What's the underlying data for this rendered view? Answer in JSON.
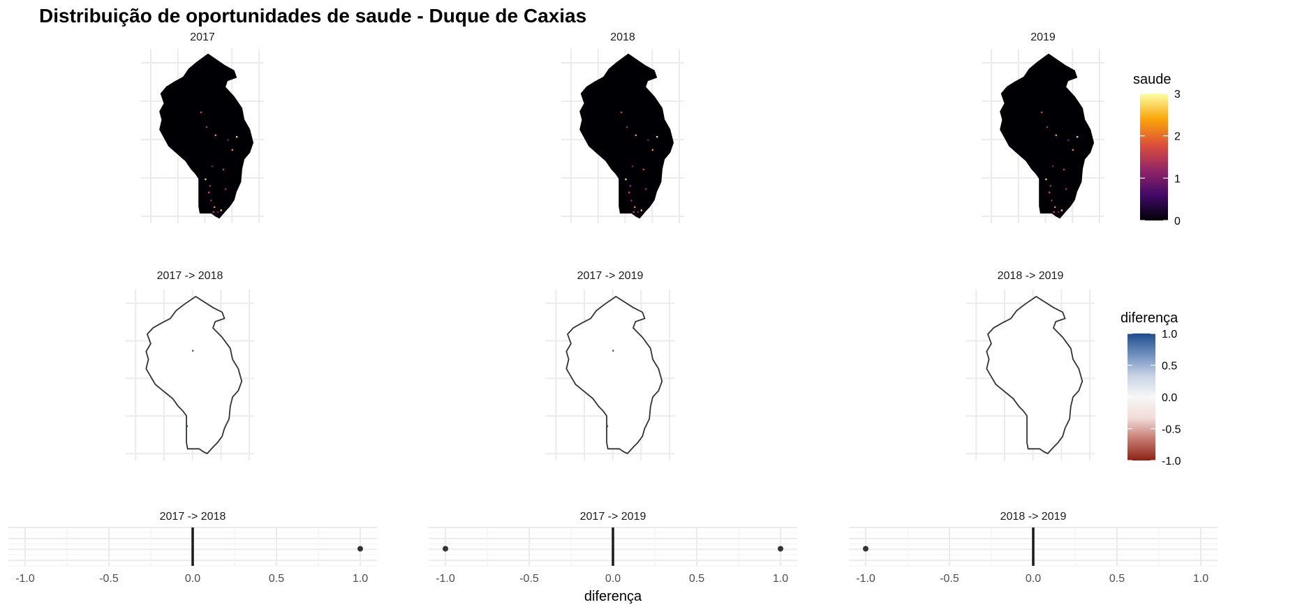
{
  "chart_data": {
    "type": "faceted-map-and-strip",
    "title": "Distribuição de oportunidades de saude - Duque de Caxias",
    "map_facets": [
      {
        "label": "2017",
        "hotspots": [
          [
            0.48,
            0.35
          ],
          [
            0.53,
            0.44
          ],
          [
            0.61,
            0.49
          ],
          [
            0.58,
            0.68
          ],
          [
            0.52,
            0.76
          ],
          [
            0.55,
            0.84
          ],
          [
            0.57,
            0.89
          ],
          [
            0.6,
            0.93
          ],
          [
            0.63,
            0.96
          ],
          [
            0.66,
            0.95
          ],
          [
            0.59,
            0.96
          ],
          [
            0.7,
            0.82
          ],
          [
            0.76,
            0.58
          ],
          [
            0.72,
            0.52
          ],
          [
            0.8,
            0.5
          ],
          [
            0.68,
            0.7
          ],
          [
            0.56,
            0.8
          ]
        ]
      },
      {
        "label": "2018",
        "hotspots": [
          [
            0.48,
            0.35
          ],
          [
            0.53,
            0.44
          ],
          [
            0.61,
            0.49
          ],
          [
            0.58,
            0.68
          ],
          [
            0.52,
            0.76
          ],
          [
            0.55,
            0.84
          ],
          [
            0.57,
            0.89
          ],
          [
            0.6,
            0.93
          ],
          [
            0.63,
            0.96
          ],
          [
            0.66,
            0.95
          ],
          [
            0.59,
            0.96
          ],
          [
            0.7,
            0.82
          ],
          [
            0.76,
            0.58
          ],
          [
            0.72,
            0.52
          ],
          [
            0.8,
            0.5
          ],
          [
            0.68,
            0.7
          ],
          [
            0.56,
            0.8
          ]
        ]
      },
      {
        "label": "2019",
        "hotspots": [
          [
            0.48,
            0.35
          ],
          [
            0.53,
            0.44
          ],
          [
            0.61,
            0.49
          ],
          [
            0.58,
            0.68
          ],
          [
            0.52,
            0.76
          ],
          [
            0.55,
            0.84
          ],
          [
            0.57,
            0.89
          ],
          [
            0.6,
            0.93
          ],
          [
            0.63,
            0.96
          ],
          [
            0.66,
            0.95
          ],
          [
            0.59,
            0.96
          ],
          [
            0.7,
            0.82
          ],
          [
            0.76,
            0.58
          ],
          [
            0.72,
            0.52
          ],
          [
            0.8,
            0.5
          ],
          [
            0.68,
            0.7
          ],
          [
            0.56,
            0.8
          ]
        ]
      }
    ],
    "diff_facets": [
      {
        "label": "2017 -> 2018",
        "marks": [
          [
            0.52,
            0.34
          ],
          [
            0.47,
            0.82
          ]
        ]
      },
      {
        "label": "2017 -> 2019",
        "marks": [
          [
            0.52,
            0.34
          ],
          [
            0.47,
            0.82
          ]
        ]
      },
      {
        "label": "2018 -> 2019",
        "marks": []
      }
    ],
    "legend_saude": {
      "title": "saude",
      "range": [
        0,
        3
      ],
      "ticks": [
        0,
        1,
        2,
        3
      ],
      "tick_labels": [
        "0",
        "1",
        "2",
        "3"
      ],
      "colors": [
        "#000004",
        "#420a68",
        "#932667",
        "#dd513a",
        "#fca50a",
        "#fcffa4"
      ]
    },
    "legend_diferenca": {
      "title": "diferença",
      "range": [
        -1,
        1
      ],
      "ticks": [
        -1,
        -0.5,
        0,
        0.5,
        1
      ],
      "tick_labels": [
        "-1.0",
        "-0.5",
        "0.0",
        "0.5",
        "1.0"
      ],
      "colors": [
        "#8b2316",
        "#c7786e",
        "#f2dcd8",
        "#f7f7f7",
        "#c9d3e6",
        "#6f8fbe",
        "#1f4e8c"
      ]
    },
    "strip_plots": [
      {
        "label": "2017 -> 2018",
        "points": [
          1.0
        ],
        "zero_line": 0.0
      },
      {
        "label": "2017 -> 2019",
        "points": [
          -1.0,
          1.0
        ],
        "zero_line": 0.0
      },
      {
        "label": "2018 -> 2019",
        "points": [
          -1.0
        ],
        "zero_line": 0.0
      }
    ],
    "strip_x_range": [
      -1.1,
      1.1
    ],
    "strip_x_ticks": [
      -1.0,
      -0.5,
      0.0,
      0.5,
      1.0
    ],
    "strip_x_tick_labels": [
      "-1.0",
      "-0.5",
      "0.0",
      "0.5",
      "1.0"
    ],
    "strip_xlabel": "diferença"
  }
}
